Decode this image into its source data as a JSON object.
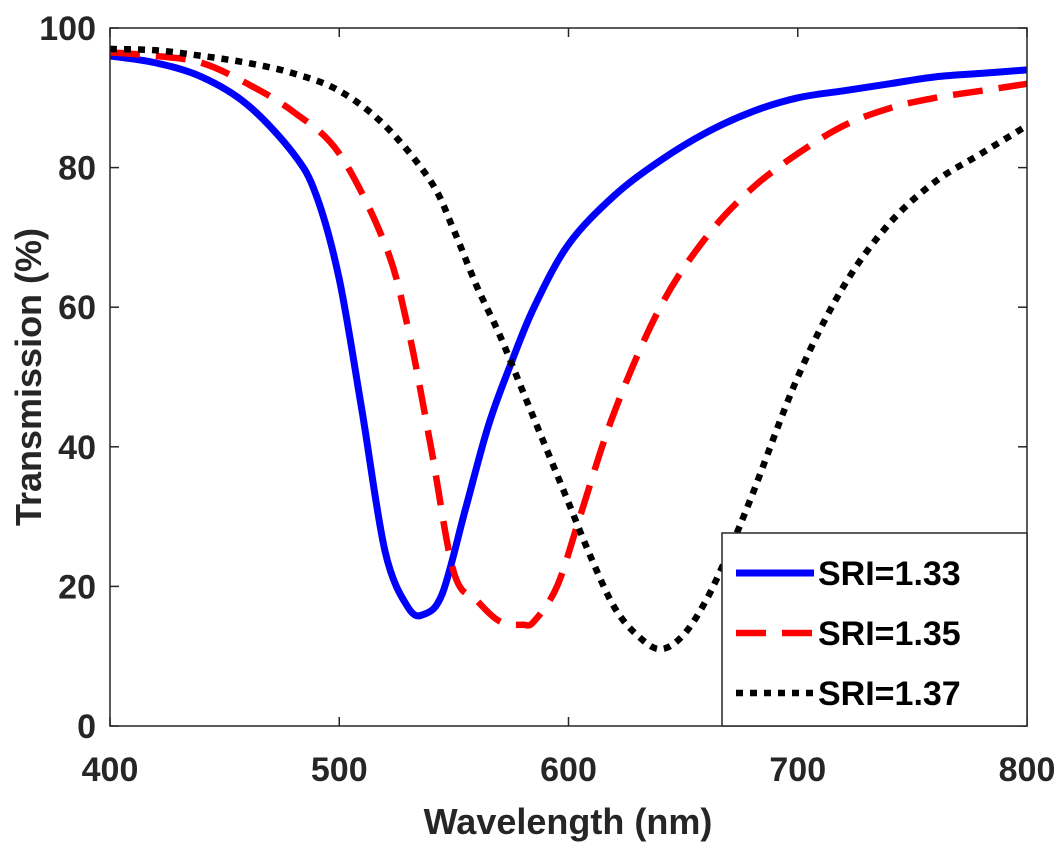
{
  "chart_data": {
    "type": "line",
    "xlabel": "Wavelength (nm)",
    "ylabel": "Transmission (%)",
    "xlim": [
      400,
      800
    ],
    "ylim": [
      0,
      100
    ],
    "xticks": [
      400,
      500,
      600,
      700,
      800
    ],
    "yticks": [
      0,
      20,
      40,
      60,
      80,
      100
    ],
    "grid": false,
    "legend_position": "bottom-right",
    "series": [
      {
        "name": "SRI=1.33",
        "color": "#0000ff",
        "style": "solid",
        "x": [
          400,
          420,
          440,
          460,
          480,
          490,
          500,
          510,
          520,
          530,
          537,
          545,
          555,
          565,
          575,
          585,
          600,
          620,
          640,
          660,
          680,
          700,
          720,
          740,
          760,
          780,
          800
        ],
        "y": [
          96,
          95,
          93,
          89,
          82,
          76,
          64,
          45,
          25,
          17,
          16,
          19,
          31,
          43,
          52,
          60,
          69,
          76,
          81,
          85,
          88,
          90,
          91,
          92,
          93,
          93.5,
          94
        ]
      },
      {
        "name": "SRI=1.35",
        "color": "#ff0000",
        "style": "dashed",
        "x": [
          400,
          420,
          440,
          460,
          480,
          500,
          520,
          530,
          540,
          550,
          560,
          570,
          580,
          585,
          595,
          605,
          620,
          640,
          660,
          680,
          700,
          720,
          740,
          760,
          780,
          800
        ],
        "y": [
          96.5,
          96,
          95,
          92,
          88,
          82,
          69,
          57,
          40,
          22,
          18,
          15,
          14.5,
          15,
          20,
          30,
          45,
          60,
          70,
          77,
          82,
          86,
          88.5,
          90,
          91,
          92
        ]
      },
      {
        "name": "SRI=1.37",
        "color": "#000000",
        "style": "dotted",
        "x": [
          400,
          420,
          440,
          460,
          480,
          500,
          520,
          540,
          550,
          560,
          570,
          580,
          590,
          600,
          610,
          620,
          630,
          640,
          650,
          660,
          670,
          680,
          700,
          720,
          740,
          760,
          780,
          800
        ],
        "y": [
          97,
          96.8,
          96,
          95,
          93.5,
          91,
          86,
          78,
          71,
          63,
          56,
          48,
          40,
          32,
          24,
          17,
          13,
          11,
          13,
          18,
          25,
          33,
          50,
          63,
          72,
          78,
          82,
          86
        ]
      }
    ]
  }
}
